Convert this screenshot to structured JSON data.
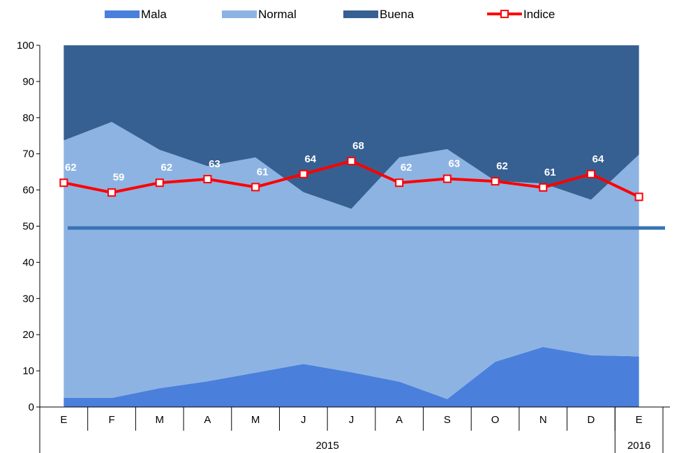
{
  "chart_data": {
    "type": "area",
    "categories": [
      "E",
      "F",
      "M",
      "A",
      "M",
      "J",
      "J",
      "A",
      "S",
      "O",
      "N",
      "D",
      "E"
    ],
    "year_groups": [
      {
        "label": "2015",
        "span": 12
      },
      {
        "label": "2016",
        "span": 1
      }
    ],
    "series": [
      {
        "name": "Mala",
        "kind": "stacked-area",
        "color": "#4a7fdc",
        "values": [
          2.5,
          2.5,
          5.2,
          7.1,
          9.5,
          11.9,
          9.6,
          7.0,
          2.2,
          12.5,
          16.6,
          14.3,
          14.0
        ]
      },
      {
        "name": "Normal",
        "kind": "stacked-area",
        "color": "#8db3e2",
        "values": [
          71.2,
          76.3,
          65.9,
          59.5,
          59.5,
          47.5,
          45.2,
          62.0,
          69.1,
          50.0,
          45.2,
          43.0,
          55.8
        ]
      },
      {
        "name": "Buena",
        "kind": "stacked-area",
        "color": "#366092",
        "values": [
          26.3,
          21.2,
          28.9,
          33.4,
          31.0,
          40.6,
          45.2,
          31.0,
          28.7,
          37.5,
          38.2,
          42.7,
          30.2
        ]
      },
      {
        "name": "Indice",
        "kind": "line",
        "color": "#ff0000",
        "values": [
          62,
          59.3,
          62,
          63,
          60.8,
          64.4,
          68,
          62,
          63.1,
          62.4,
          60.7,
          64.4,
          58.1
        ],
        "labels": [
          "62",
          "59",
          "62",
          "63",
          "61",
          "64",
          "68",
          "62",
          "63",
          "62",
          "61",
          "64",
          "58"
        ]
      }
    ],
    "reference_line": {
      "value": 49.5,
      "color": "#3a73b4"
    },
    "ylim": [
      0,
      100
    ],
    "yticks": [
      0,
      10,
      20,
      30,
      40,
      50,
      60,
      70,
      80,
      90,
      100
    ],
    "legend_position": "top"
  }
}
